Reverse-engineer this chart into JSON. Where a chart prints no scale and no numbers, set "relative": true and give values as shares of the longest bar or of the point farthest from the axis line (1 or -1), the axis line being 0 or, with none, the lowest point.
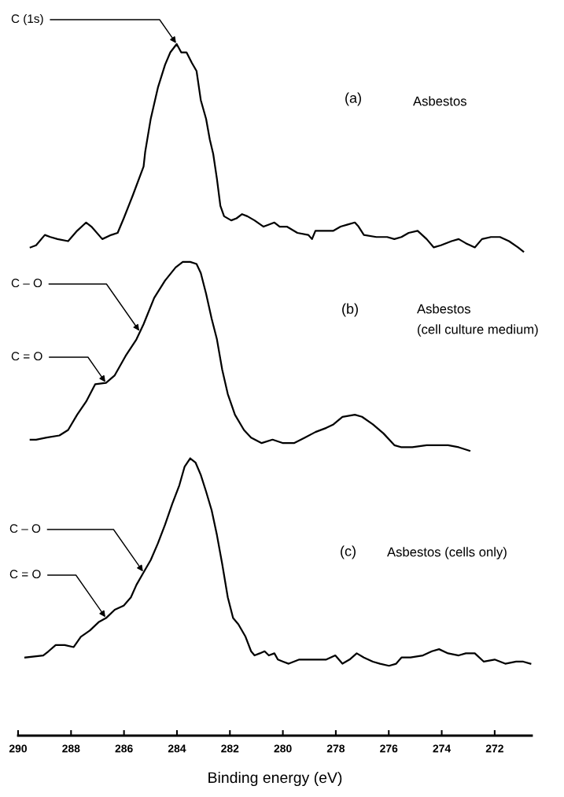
{
  "chart_data": {
    "type": "line",
    "relative": true,
    "xlim": [
      290,
      270.6
    ],
    "xticks": [
      290,
      288,
      286,
      284,
      282,
      280,
      278,
      276,
      274,
      272
    ],
    "xlabel": "Binding energy (eV)",
    "series": [
      {
        "color": "#000000",
        "x": [
          289.53,
          289.32,
          288.99,
          288.78,
          288.51,
          288.11,
          287.77,
          287.43,
          287.23,
          286.82,
          286.48,
          286.24,
          286.01,
          285.67,
          285.26,
          285.2,
          284.99,
          284.72,
          284.45,
          284.25,
          284.01,
          283.84,
          283.64,
          283.44,
          283.26,
          283.1,
          282.9,
          282.76,
          282.63,
          282.49,
          282.36,
          282.22,
          281.95,
          281.75,
          281.54,
          281.34,
          281.07,
          280.73,
          280.53,
          280.32,
          280.12,
          279.85,
          279.45,
          279.04,
          278.9,
          278.77,
          278.5,
          278.09,
          277.82,
          277.55,
          277.28,
          277.14,
          276.94,
          276.47,
          276.06,
          275.79,
          275.52,
          275.25,
          274.91,
          274.57,
          274.3,
          274.03,
          273.63,
          273.36,
          273.09,
          272.75,
          272.48,
          272.14,
          271.8,
          271.46,
          271.12,
          270.92
        ],
        "values": [
          0.706,
          0.709,
          0.724,
          0.721,
          0.718,
          0.715,
          0.73,
          0.742,
          0.736,
          0.718,
          0.724,
          0.727,
          0.748,
          0.781,
          0.823,
          0.844,
          0.892,
          0.937,
          0.97,
          0.988,
          1.0,
          0.988,
          0.988,
          0.973,
          0.961,
          0.919,
          0.892,
          0.862,
          0.841,
          0.805,
          0.766,
          0.751,
          0.745,
          0.748,
          0.754,
          0.751,
          0.745,
          0.736,
          0.739,
          0.742,
          0.736,
          0.736,
          0.727,
          0.724,
          0.718,
          0.73,
          0.73,
          0.73,
          0.736,
          0.739,
          0.742,
          0.736,
          0.724,
          0.721,
          0.721,
          0.718,
          0.721,
          0.727,
          0.73,
          0.718,
          0.706,
          0.709,
          0.715,
          0.718,
          0.712,
          0.706,
          0.718,
          0.721,
          0.721,
          0.715,
          0.706,
          0.7
        ]
      },
      {
        "color": "#000000",
        "x": [
          289.53,
          289.32,
          288.92,
          288.44,
          288.11,
          287.77,
          287.43,
          287.09,
          286.68,
          286.35,
          285.94,
          285.53,
          285.26,
          284.86,
          284.45,
          284.05,
          283.78,
          283.5,
          283.26,
          283.1,
          282.9,
          282.69,
          282.49,
          282.29,
          282.08,
          281.81,
          281.47,
          281.2,
          280.8,
          280.39,
          279.99,
          279.58,
          279.17,
          278.77,
          278.36,
          278.09,
          277.75,
          277.28,
          277.01,
          276.6,
          276.2,
          275.79,
          275.52,
          275.11,
          274.57,
          274.17,
          273.76,
          273.36,
          272.95
        ],
        "values": [
          0.428,
          0.428,
          0.431,
          0.434,
          0.442,
          0.464,
          0.483,
          0.508,
          0.51,
          0.521,
          0.549,
          0.573,
          0.595,
          0.633,
          0.658,
          0.677,
          0.685,
          0.685,
          0.682,
          0.669,
          0.639,
          0.603,
          0.573,
          0.529,
          0.494,
          0.464,
          0.442,
          0.431,
          0.423,
          0.428,
          0.423,
          0.423,
          0.431,
          0.439,
          0.445,
          0.45,
          0.461,
          0.464,
          0.461,
          0.45,
          0.437,
          0.42,
          0.417,
          0.417,
          0.42,
          0.42,
          0.42,
          0.417,
          0.412
        ]
      },
      {
        "color": "#000000",
        "x": [
          289.73,
          289.05,
          288.85,
          288.58,
          288.24,
          287.9,
          287.63,
          287.29,
          286.96,
          286.68,
          286.35,
          286.01,
          285.74,
          285.53,
          285.26,
          284.99,
          284.72,
          284.45,
          284.18,
          283.91,
          283.71,
          283.5,
          283.3,
          283.1,
          282.9,
          282.69,
          282.49,
          282.29,
          282.08,
          281.88,
          281.68,
          281.41,
          281.2,
          281.07,
          280.87,
          280.69,
          280.53,
          280.32,
          280.19,
          279.99,
          279.78,
          279.38,
          279.04,
          278.36,
          278.02,
          277.75,
          277.48,
          277.21,
          276.94,
          276.6,
          276.33,
          275.99,
          275.72,
          275.52,
          275.18,
          274.71,
          274.37,
          274.1,
          273.76,
          273.36,
          273.09,
          272.75,
          272.41,
          272.0,
          271.6,
          271.19,
          270.92,
          270.65
        ],
        "values": [
          0.113,
          0.116,
          0.122,
          0.131,
          0.131,
          0.128,
          0.143,
          0.152,
          0.164,
          0.17,
          0.182,
          0.188,
          0.2,
          0.218,
          0.236,
          0.254,
          0.278,
          0.305,
          0.335,
          0.362,
          0.389,
          0.401,
          0.395,
          0.377,
          0.353,
          0.326,
          0.29,
          0.248,
          0.2,
          0.17,
          0.161,
          0.143,
          0.122,
          0.116,
          0.119,
          0.122,
          0.116,
          0.119,
          0.11,
          0.107,
          0.104,
          0.11,
          0.11,
          0.11,
          0.116,
          0.104,
          0.11,
          0.119,
          0.113,
          0.107,
          0.104,
          0.101,
          0.104,
          0.113,
          0.113,
          0.116,
          0.122,
          0.125,
          0.119,
          0.116,
          0.119,
          0.119,
          0.107,
          0.11,
          0.104,
          0.107,
          0.107,
          0.104
        ]
      }
    ],
    "annotations": [
      {
        "text": "C (1s)",
        "x": 284.01,
        "y": 1.0
      },
      "(a)",
      "Asbestos",
      {
        "text": "C – O",
        "x": 285.4,
        "y": 0.584
      },
      {
        "text": "C = O",
        "x": 286.68,
        "y": 0.51
      },
      "(b)",
      "Asbestos",
      "(cell culture medium)",
      {
        "text": "C – O",
        "x": 285.26,
        "y": 0.236
      },
      {
        "text": "C = O",
        "x": 286.68,
        "y": 0.17
      },
      "(c)",
      "Asbestos (cells only)"
    ]
  }
}
